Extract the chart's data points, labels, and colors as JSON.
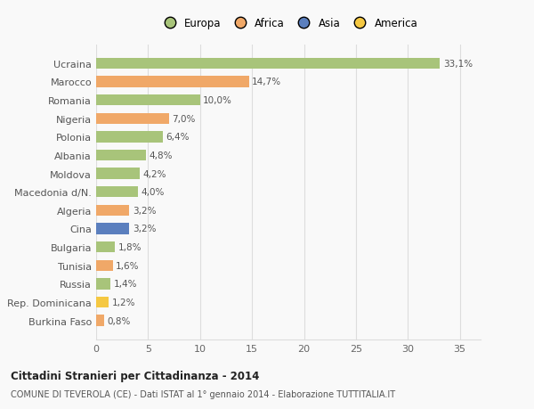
{
  "countries": [
    "Burkina Faso",
    "Rep. Dominicana",
    "Russia",
    "Tunisia",
    "Bulgaria",
    "Cina",
    "Algeria",
    "Macedonia d/N.",
    "Moldova",
    "Albania",
    "Polonia",
    "Nigeria",
    "Romania",
    "Marocco",
    "Ucraina"
  ],
  "values": [
    0.8,
    1.2,
    1.4,
    1.6,
    1.8,
    3.2,
    3.2,
    4.0,
    4.2,
    4.8,
    6.4,
    7.0,
    10.0,
    14.7,
    33.1
  ],
  "labels": [
    "0,8%",
    "1,2%",
    "1,4%",
    "1,6%",
    "1,8%",
    "3,2%",
    "3,2%",
    "4,0%",
    "4,2%",
    "4,8%",
    "6,4%",
    "7,0%",
    "10,0%",
    "14,7%",
    "33,1%"
  ],
  "colors": [
    "#f0a868",
    "#f5c842",
    "#a8c47a",
    "#f0a868",
    "#a8c47a",
    "#5b7fbe",
    "#f0a868",
    "#a8c47a",
    "#a8c47a",
    "#a8c47a",
    "#a8c47a",
    "#f0a868",
    "#a8c47a",
    "#f0a868",
    "#a8c47a"
  ],
  "legend": {
    "Europa": "#a8c47a",
    "Africa": "#f0a868",
    "Asia": "#5b7fbe",
    "America": "#f5c842"
  },
  "title1": "Cittadini Stranieri per Cittadinanza - 2014",
  "title2": "COMUNE DI TEVEROLA (CE) - Dati ISTAT al 1° gennaio 2014 - Elaborazione TUTTITALIA.IT",
  "xlim": [
    0,
    37
  ],
  "xticks": [
    0,
    5,
    10,
    15,
    20,
    25,
    30,
    35
  ],
  "background_color": "#f9f9f9",
  "bar_height": 0.6,
  "grid_color": "#dddddd"
}
